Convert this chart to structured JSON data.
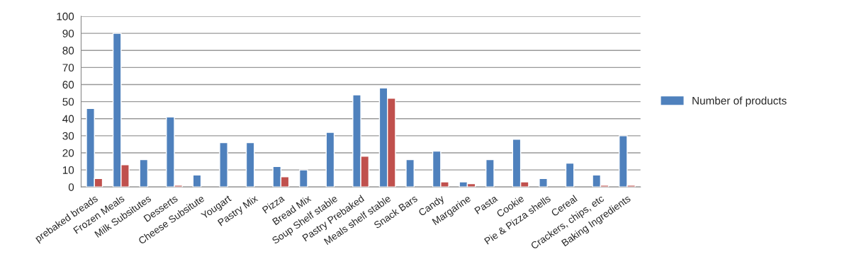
{
  "chart_data": {
    "type": "bar",
    "categories": [
      "prebaked breads",
      "Frozen Meals",
      "Milk Subsitutes",
      "Desserts",
      "Cheese Subsitute",
      "Yougart",
      "Pastry Mix",
      "Pizza",
      "Bread Mix",
      "Soup Shelf stable",
      "Pastry Prebaked",
      "Meals shelf stable",
      "Snack Bars",
      "Candy",
      "Margarine",
      "Pasta",
      "Cookie",
      "Pie & Pizza shells",
      "Cereal",
      "Crackers, chips, etc",
      "Baking Ingredients"
    ],
    "series": [
      {
        "name": "Number of products",
        "color": "#4f81bd",
        "values": [
          46,
          90,
          16,
          41,
          7,
          26,
          26,
          12,
          10,
          32,
          54,
          58,
          16,
          21,
          3,
          16,
          28,
          5,
          14,
          7,
          30
        ]
      },
      {
        "color": "#c0504d",
        "values": [
          5,
          13,
          null,
          1,
          null,
          null,
          null,
          6,
          null,
          null,
          18,
          52,
          null,
          3,
          2,
          null,
          3,
          null,
          null,
          1,
          1
        ]
      }
    ],
    "ylim": [
      0,
      100
    ],
    "yticks": [
      0,
      10,
      20,
      30,
      40,
      50,
      60,
      70,
      80,
      90,
      100
    ],
    "grid": "y",
    "legend": "right"
  }
}
